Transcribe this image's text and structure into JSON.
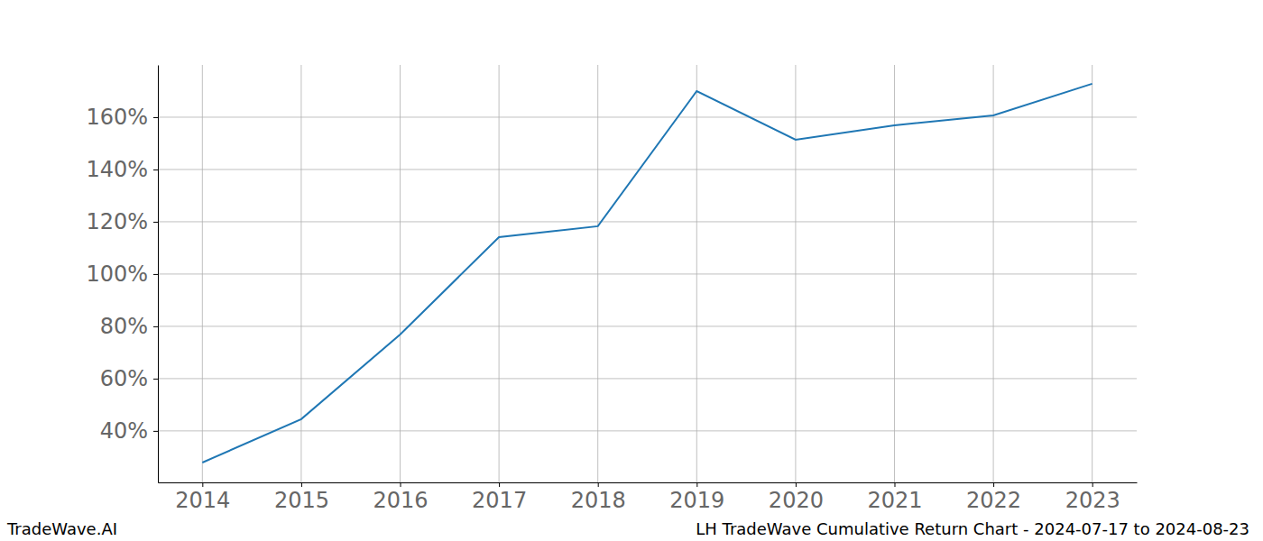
{
  "chart_data": {
    "type": "line",
    "title": "LH TradeWave Cumulative Return Chart - 2024-07-17 to 2024-08-23",
    "source": "TradeWave.AI",
    "x": [
      2014,
      2015,
      2016,
      2017,
      2018,
      2019,
      2020,
      2021,
      2022,
      2023
    ],
    "values": [
      27.9,
      44.5,
      76.9,
      114.1,
      118.3,
      170.0,
      151.4,
      156.9,
      160.7,
      172.8
    ],
    "color": "#1f77b4",
    "xlim": [
      2013.55,
      2023.45
    ],
    "xticks": [
      2014,
      2015,
      2016,
      2017,
      2018,
      2019,
      2020,
      2021,
      2022,
      2023
    ],
    "ylim": [
      20.3,
      180
    ],
    "yticks": [
      {
        "value": 40,
        "label": "40%"
      },
      {
        "value": 60,
        "label": "60%"
      },
      {
        "value": 80,
        "label": "80%"
      },
      {
        "value": 100,
        "label": "100%"
      },
      {
        "value": 120,
        "label": "120%"
      },
      {
        "value": 140,
        "label": "140%"
      },
      {
        "value": 160,
        "label": "160%"
      }
    ],
    "grid": true
  }
}
